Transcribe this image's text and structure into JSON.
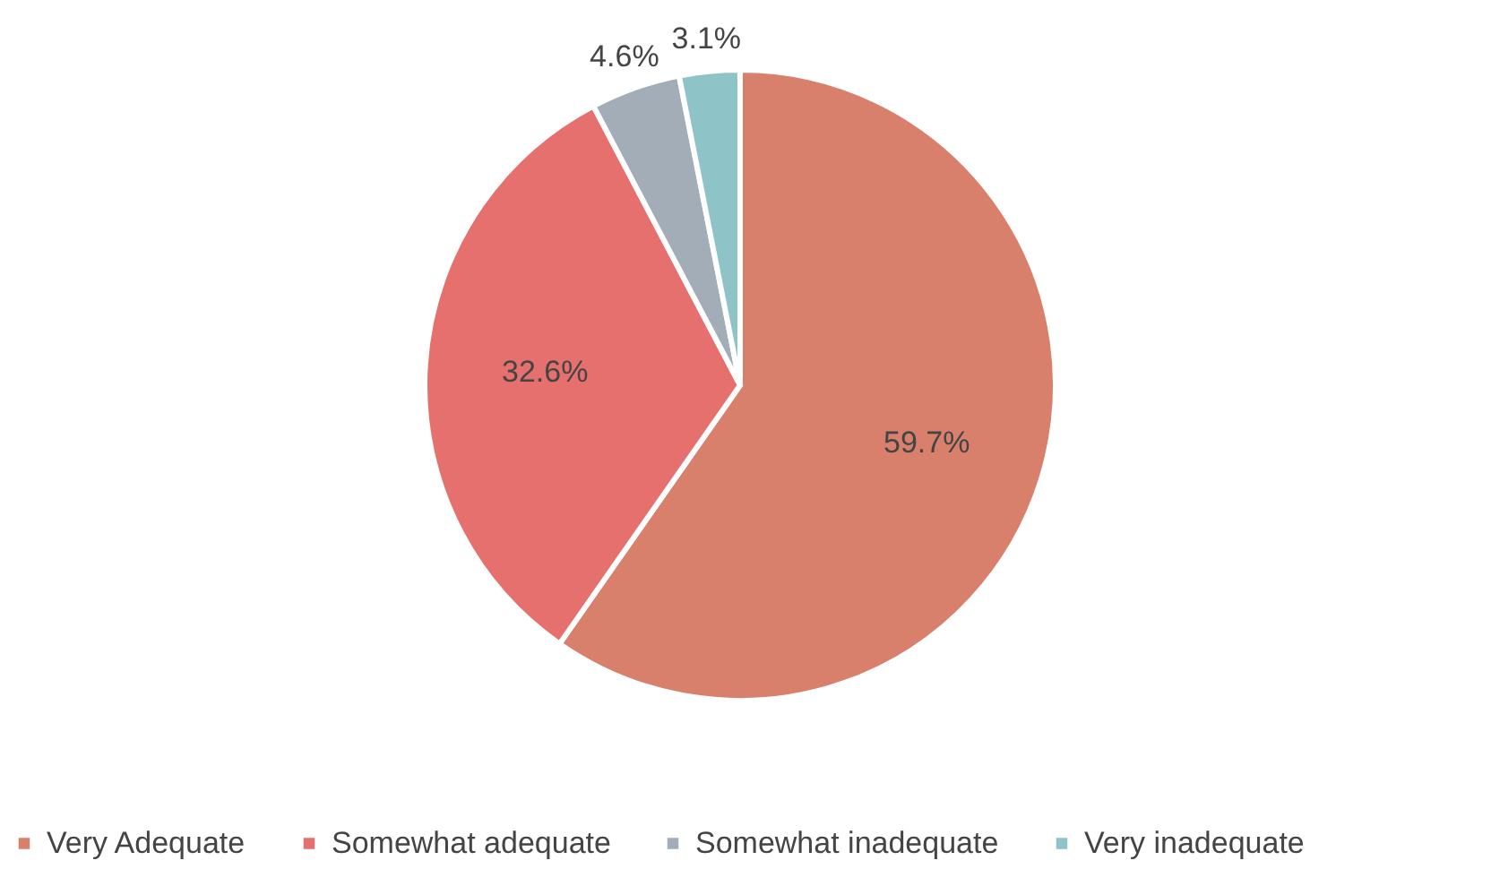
{
  "chart_data": {
    "type": "pie",
    "categories": [
      "Very Adequate",
      "Somewhat adequate",
      "Somewhat inadequate",
      "Very inadequate"
    ],
    "values": [
      59.7,
      32.6,
      4.6,
      3.1
    ],
    "colors": [
      "#d9806c",
      "#e5706d",
      "#a3adb8",
      "#8ec3c8"
    ],
    "value_labels": [
      "59.7%",
      "32.6%",
      "4.6%",
      "3.1%"
    ],
    "legend": "bottom"
  }
}
